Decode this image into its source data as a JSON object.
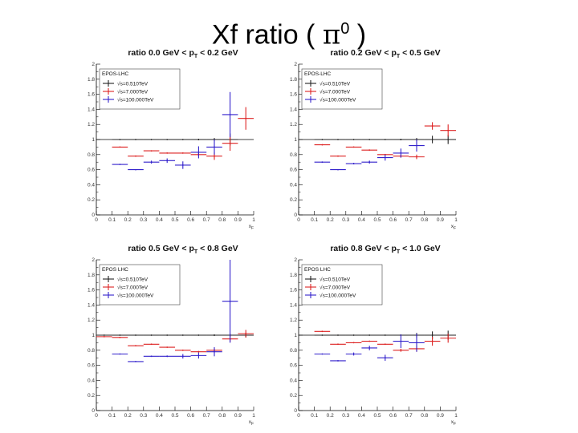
{
  "slide": {
    "title_prefix": "Xf ratio ( ",
    "title_symbol": "π",
    "title_superscript": "0",
    "title_suffix": " )"
  },
  "colors": {
    "black": "#222222",
    "red": "#dd2222",
    "blue": "#3322cc",
    "axis": "#000000"
  },
  "chart_data": [
    {
      "type": "scatter",
      "title_prefix": "ratio 0.0 GeV < p",
      "title_sub": "T",
      "title_suffix": " < 0.2 GeV",
      "xlabel": "x",
      "xlabel_sub": "F",
      "xlim": [
        0,
        1
      ],
      "ylim": [
        0,
        2
      ],
      "xticks": [
        "0",
        "0.1",
        "0.2",
        "0.3",
        "0.4",
        "0.5",
        "0.6",
        "0.7",
        "0.8",
        "0.9",
        "1"
      ],
      "yticks": [
        "0",
        "0.2",
        "0.4",
        "0.6",
        "0.8",
        "1",
        "1.2",
        "1.4",
        "1.6",
        "1.8",
        "2"
      ],
      "legend": {
        "header": "EPOS-LHC",
        "entries": [
          "√s=0.510TeV",
          "√s=7.000TeV",
          "√s=100.000TeV"
        ]
      },
      "reference_line": 1.0,
      "series": [
        {
          "name": "√s=0.510TeV",
          "color": "black",
          "x": [
            0.15,
            0.25,
            0.35,
            0.45,
            0.55,
            0.65,
            0.75,
            0.85
          ],
          "y": [
            1.0,
            1.0,
            1.0,
            1.0,
            1.0,
            1.0,
            1.0,
            1.0
          ],
          "yerr": [
            0,
            0,
            0,
            0,
            0,
            0.01,
            0.02,
            0.08
          ]
        },
        {
          "name": "√s=7.000TeV",
          "color": "red",
          "x": [
            0.15,
            0.25,
            0.35,
            0.45,
            0.55,
            0.65,
            0.75,
            0.85,
            0.95
          ],
          "y": [
            0.9,
            0.78,
            0.85,
            0.82,
            0.82,
            0.8,
            0.78,
            0.95,
            1.28
          ],
          "yerr": [
            0,
            0,
            0,
            0,
            0,
            0.02,
            0.05,
            0.1,
            0.15
          ]
        },
        {
          "name": "√s=100.000TeV",
          "color": "blue",
          "x": [
            0.15,
            0.25,
            0.35,
            0.45,
            0.55,
            0.65,
            0.75,
            0.85
          ],
          "y": [
            0.67,
            0.6,
            0.7,
            0.72,
            0.66,
            0.83,
            0.9,
            1.33
          ],
          "yerr": [
            0,
            0,
            0.02,
            0.03,
            0.05,
            0.08,
            0.1,
            0.3
          ]
        }
      ]
    },
    {
      "type": "scatter",
      "title_prefix": "ratio 0.2 GeV < p",
      "title_sub": "T",
      "title_suffix": " < 0.5 GeV",
      "xlabel": "x",
      "xlabel_sub": "F",
      "xlim": [
        0,
        1
      ],
      "ylim": [
        0,
        2
      ],
      "xticks": [
        "0",
        "0.1",
        "0.2",
        "0.3",
        "0.4",
        "0.5",
        "0.6",
        "0.7",
        "0.8",
        "0.9",
        "1"
      ],
      "yticks": [
        "0",
        "0.2",
        "0.4",
        "0.6",
        "0.8",
        "1",
        "1.2",
        "1.4",
        "1.6",
        "1.8",
        "2"
      ],
      "legend": {
        "header": "EPOS-LHC",
        "entries": [
          "√s=0.510TeV",
          "√s=7.000TeV",
          "√s=100.000TeV"
        ]
      },
      "reference_line": 1.0,
      "series": [
        {
          "name": "√s=0.510TeV",
          "color": "black",
          "x": [
            0.15,
            0.25,
            0.35,
            0.45,
            0.55,
            0.65,
            0.75,
            0.85,
            0.95
          ],
          "y": [
            1.0,
            1.0,
            1.0,
            1.0,
            1.0,
            1.0,
            1.0,
            1.0,
            1.0
          ],
          "yerr": [
            0,
            0,
            0,
            0,
            0,
            0.01,
            0.02,
            0.05,
            0.06
          ]
        },
        {
          "name": "√s=7.000TeV",
          "color": "red",
          "x": [
            0.15,
            0.25,
            0.35,
            0.45,
            0.55,
            0.65,
            0.75,
            0.85,
            0.95
          ],
          "y": [
            0.93,
            0.78,
            0.9,
            0.86,
            0.8,
            0.78,
            0.77,
            1.18,
            1.12
          ],
          "yerr": [
            0,
            0,
            0,
            0,
            0,
            0.02,
            0.03,
            0.05,
            0.08
          ]
        },
        {
          "name": "√s=100.000TeV",
          "color": "blue",
          "x": [
            0.15,
            0.25,
            0.35,
            0.45,
            0.55,
            0.65,
            0.75
          ],
          "y": [
            0.7,
            0.6,
            0.68,
            0.7,
            0.76,
            0.82,
            0.92
          ],
          "yerr": [
            0,
            0,
            0.01,
            0.02,
            0.04,
            0.06,
            0.08
          ]
        }
      ]
    },
    {
      "type": "scatter",
      "title_prefix": "ratio 0.5 GeV < p",
      "title_sub": "T",
      "title_suffix": " < 0.8 GeV",
      "xlabel": "x",
      "xlabel_sub": "F",
      "xlim": [
        0,
        1
      ],
      "ylim": [
        0,
        2
      ],
      "xticks": [
        "0",
        "0.1",
        "0.2",
        "0.3",
        "0.4",
        "0.5",
        "0.6",
        "0.7",
        "0.8",
        "0.9",
        "1"
      ],
      "yticks": [
        "0",
        "0.2",
        "0.4",
        "0.6",
        "0.8",
        "1",
        "1.2",
        "1.4",
        "1.6",
        "1.8",
        "2"
      ],
      "legend": {
        "header": "EPOS LHC",
        "entries": [
          "√s=0.510TeV",
          "√s=7.000TeV",
          "√s=100.000TeV"
        ]
      },
      "reference_line": 1.0,
      "series": [
        {
          "name": "√s=0.510TeV",
          "color": "black",
          "x": [
            0.05,
            0.15,
            0.25,
            0.35,
            0.45,
            0.55,
            0.65,
            0.75,
            0.85,
            0.95
          ],
          "y": [
            1.0,
            1.0,
            1.0,
            1.0,
            1.0,
            1.0,
            1.0,
            1.0,
            1.0,
            1.0
          ],
          "yerr": [
            0,
            0,
            0,
            0,
            0,
            0,
            0,
            0.01,
            0.02,
            0.03
          ]
        },
        {
          "name": "√s=7.000TeV",
          "color": "red",
          "x": [
            0.05,
            0.15,
            0.25,
            0.35,
            0.45,
            0.55,
            0.65,
            0.75,
            0.85,
            0.95
          ],
          "y": [
            0.98,
            0.97,
            0.86,
            0.88,
            0.84,
            0.8,
            0.78,
            0.8,
            0.95,
            1.02
          ],
          "yerr": [
            0,
            0,
            0,
            0,
            0,
            0,
            0.01,
            0.02,
            0.04,
            0.05
          ]
        },
        {
          "name": "√s=100.000TeV",
          "color": "blue",
          "x": [
            0.15,
            0.25,
            0.35,
            0.45,
            0.55,
            0.65,
            0.75,
            0.85
          ],
          "y": [
            0.75,
            0.65,
            0.72,
            0.72,
            0.72,
            0.73,
            0.78,
            1.45
          ],
          "yerr": [
            0,
            0,
            0,
            0.01,
            0.03,
            0.04,
            0.06,
            0.55
          ]
        }
      ]
    },
    {
      "type": "scatter",
      "title_prefix": "ratio 0.8 GeV < p",
      "title_sub": "T",
      "title_suffix": " < 1.0 GeV",
      "xlabel": "x",
      "xlabel_sub": "F",
      "xlim": [
        0,
        1
      ],
      "ylim": [
        0,
        2
      ],
      "xticks": [
        "0",
        "0.1",
        "0.2",
        "0.3",
        "0.4",
        "0.5",
        "0.6",
        "0.7",
        "0.8",
        "0.9",
        "1"
      ],
      "yticks": [
        "0",
        "0.2",
        "0.4",
        "0.6",
        "0.8",
        "1",
        "1.2",
        "1.4",
        "1.6",
        "1.8",
        "2"
      ],
      "legend": {
        "header": "EPOS LHC",
        "entries": [
          "√s=0.510TeV",
          "√s=7.000TeV",
          "√s=100.000TeV"
        ]
      },
      "reference_line": 1.0,
      "series": [
        {
          "name": "√s=0.510TeV",
          "color": "black",
          "x": [
            0.15,
            0.25,
            0.35,
            0.45,
            0.55,
            0.65,
            0.75,
            0.85,
            0.95
          ],
          "y": [
            1.0,
            1.0,
            1.0,
            1.0,
            1.0,
            1.0,
            1.0,
            1.0,
            1.0
          ],
          "yerr": [
            0,
            0,
            0,
            0,
            0,
            0.01,
            0.03,
            0.05,
            0.06
          ]
        },
        {
          "name": "√s=7.000TeV",
          "color": "red",
          "x": [
            0.15,
            0.25,
            0.35,
            0.45,
            0.55,
            0.65,
            0.75,
            0.85,
            0.95
          ],
          "y": [
            1.05,
            0.88,
            0.9,
            0.92,
            0.88,
            0.8,
            0.82,
            0.92,
            0.96
          ],
          "yerr": [
            0,
            0,
            0,
            0,
            0,
            0.02,
            0.04,
            0.06,
            0.06
          ]
        },
        {
          "name": "√s=100.000TeV",
          "color": "blue",
          "x": [
            0.15,
            0.25,
            0.35,
            0.45,
            0.55,
            0.65,
            0.75
          ],
          "y": [
            0.75,
            0.66,
            0.75,
            0.83,
            0.7,
            0.92,
            0.9
          ],
          "yerr": [
            0,
            0,
            0.02,
            0.03,
            0.04,
            0.09,
            0.12
          ]
        }
      ]
    }
  ]
}
